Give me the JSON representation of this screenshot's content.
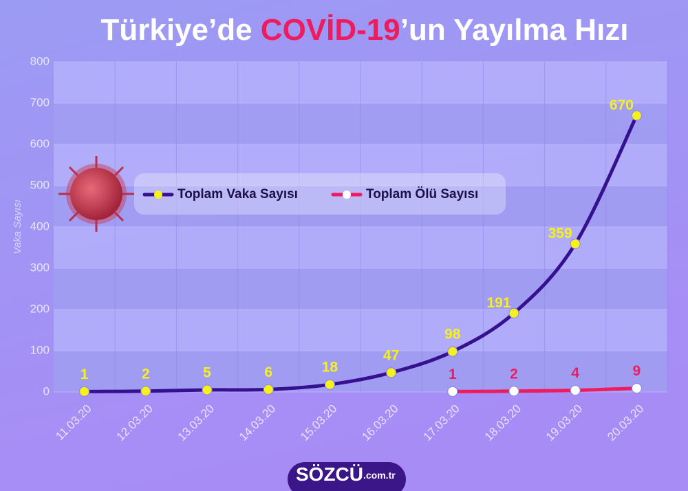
{
  "chart_data": {
    "type": "line",
    "title": [
      "Türkiye’de ",
      "COVİD-19",
      "’un Yayılma Hızı"
    ],
    "y_label": "Vaka Sayısı",
    "categories": [
      "11.03.20",
      "12.03.20",
      "13.03.20",
      "14.03.20",
      "15.03.20",
      "16.03.20",
      "17.03.20",
      "18.03.20",
      "19.03.20",
      "20.03.20"
    ],
    "series": [
      {
        "name": "Toplam Vaka Sayısı",
        "color": "#35108f",
        "marker_color": "#f5f01e",
        "label_color": "#f5f01e",
        "values": [
          1,
          2,
          5,
          6,
          18,
          47,
          98,
          191,
          359,
          670
        ]
      },
      {
        "name": "Toplam Ölü Sayısı",
        "color": "#ee1c5e",
        "marker_color": "#ffffff",
        "label_color": "#ee1c5e",
        "values": [
          null,
          null,
          null,
          null,
          null,
          null,
          1,
          2,
          4,
          9
        ]
      }
    ],
    "ylim": [
      0,
      800
    ],
    "yticks": [
      0,
      100,
      200,
      300,
      400,
      500,
      600,
      700,
      800
    ],
    "grid": true,
    "brand": "SÖZCÜ",
    "brand_suffix": ".com.tr"
  }
}
